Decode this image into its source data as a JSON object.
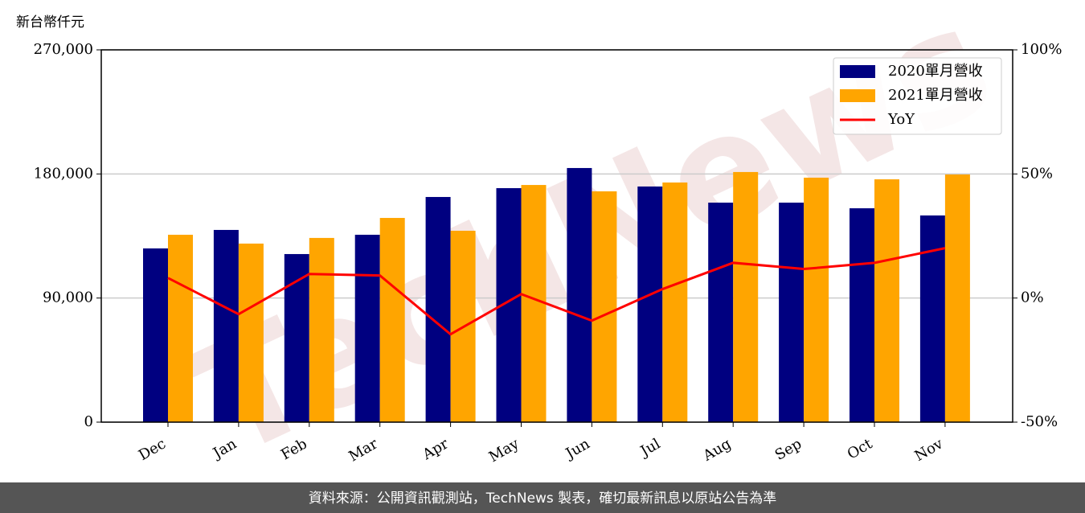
{
  "chart_data": {
    "type": "bar",
    "ylabel": "新台幣仟元",
    "watermark": "TechNews",
    "footer": "資料來源：公開資訊觀測站，TechNews 製表，確切最新訊息以原站公告為準",
    "categories": [
      "Dec",
      "Jan",
      "Feb",
      "Mar",
      "Apr",
      "May",
      "Jun",
      "Jul",
      "Aug",
      "Sep",
      "Oct",
      "Nov"
    ],
    "series": [
      {
        "name": "2020單月營收",
        "color": "#000080",
        "values": [
          126000,
          139400,
          121900,
          135900,
          163300,
          169700,
          184300,
          170900,
          159200,
          159200,
          155100,
          149900
        ]
      },
      {
        "name": "2021單月營收",
        "color": "#ffa500",
        "values": [
          135900,
          129500,
          133600,
          148100,
          138800,
          172000,
          167400,
          173800,
          181400,
          177300,
          176100,
          179600
        ]
      },
      {
        "name": "YoY",
        "color": "#ff0000",
        "type": "line",
        "axis": "y2",
        "values": [
          8.1,
          -6.5,
          9.7,
          9.1,
          -14.6,
          1.6,
          -9.1,
          3.6,
          14.2,
          11.7,
          14.2,
          20.1
        ]
      }
    ],
    "ylim": [
      0,
      270000
    ],
    "yticks": [
      0,
      {
        "value": 90000,
        "label": "90,000"
      },
      {
        "value": 180000,
        "label": "180,000"
      },
      {
        "value": 270000,
        "label": "270,000"
      }
    ],
    "y2lim": [
      -50,
      100
    ],
    "y2ticks": [
      {
        "value": -50,
        "label": "-50%"
      },
      {
        "value": 0,
        "label": "0%"
      },
      {
        "value": 50,
        "label": "50%"
      },
      {
        "value": 100,
        "label": "100%"
      }
    ],
    "grid": true,
    "legend": "upper right"
  }
}
